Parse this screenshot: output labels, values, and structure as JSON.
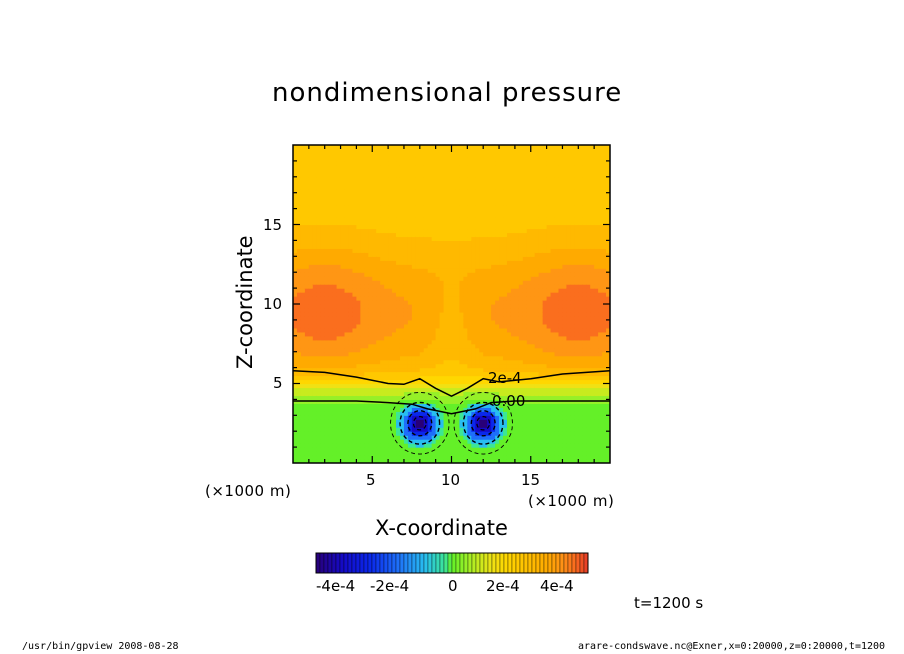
{
  "chart_data": {
    "type": "heatmap",
    "title": "nondimensional pressure",
    "xlabel": "X-coordinate",
    "ylabel": "Z-coordinate",
    "x_unit_label_left": "(×1000 m)",
    "x_unit_label_right": "(×1000 m)",
    "xlim": [
      0,
      20
    ],
    "ylim": [
      0,
      20
    ],
    "x_ticks": [
      5,
      10,
      15
    ],
    "y_ticks": [
      5,
      10,
      15
    ],
    "x_tick_labels": [
      "5",
      "10",
      "15"
    ],
    "y_tick_labels": [
      "5",
      "10",
      "15"
    ],
    "contour_labels": [
      "2e-4",
      "0.00"
    ],
    "colorbar": {
      "range": [
        -0.0005,
        0.0005
      ],
      "tick_labels": [
        "-4e-4",
        "-2e-4",
        "0",
        "2e-4",
        "4e-4"
      ]
    },
    "fields": {
      "surface_value": 0.0,
      "top_value": 0.00025,
      "max_value": 0.00042,
      "min_value": -0.00048,
      "lows_x": [
        8,
        12
      ],
      "lows_z": [
        2.5,
        2.5
      ]
    }
  },
  "annotation": {
    "time": "t=1200 s",
    "program": "/usr/bin/gpview   2008-08-28",
    "source": "arare-condswave.nc@Exner,x=0:20000,z=0:20000,t=1200"
  }
}
